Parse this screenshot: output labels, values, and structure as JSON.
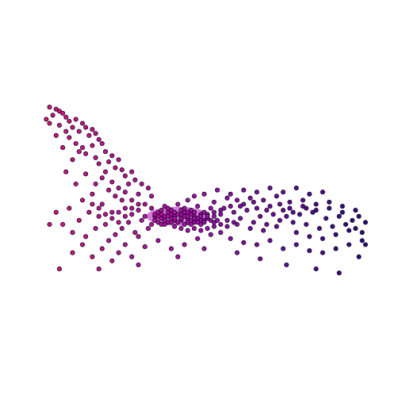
{
  "chart_data": {
    "type": "scatter",
    "title": "",
    "xlabel": "",
    "ylabel": "",
    "xlim": [
      0,
      100
    ],
    "ylim": [
      0,
      100
    ],
    "axes_visible": false,
    "grid": false,
    "legend": "none",
    "color_gradient": {
      "start": "#e0107a",
      "mid": "#a60db8",
      "end": "#1c0a86"
    },
    "series": [
      {
        "points": [
          [
            3,
            98
          ],
          [
            5,
            97
          ],
          [
            6,
            96
          ],
          [
            4,
            94
          ],
          [
            2,
            92
          ],
          [
            7,
            95
          ],
          [
            8,
            93
          ],
          [
            3,
            90
          ],
          [
            9,
            91
          ],
          [
            6,
            89
          ],
          [
            11,
            92
          ],
          [
            10,
            88
          ],
          [
            13,
            90
          ],
          [
            8,
            86
          ],
          [
            12,
            86
          ],
          [
            14,
            88
          ],
          [
            16,
            87
          ],
          [
            9,
            83
          ],
          [
            15,
            84
          ],
          [
            17,
            85
          ],
          [
            11,
            80
          ],
          [
            18,
            82
          ],
          [
            13,
            78
          ],
          [
            19,
            80
          ],
          [
            16,
            79
          ],
          [
            14,
            75
          ],
          [
            20,
            76
          ],
          [
            17,
            73
          ],
          [
            22,
            74
          ],
          [
            18,
            70
          ],
          [
            21,
            71
          ],
          [
            24,
            72
          ],
          [
            12,
            76
          ],
          [
            23,
            68
          ],
          [
            20,
            66
          ],
          [
            25,
            67
          ],
          [
            26,
            64
          ],
          [
            19,
            63
          ],
          [
            28,
            66
          ],
          [
            22,
            61
          ],
          [
            27,
            60
          ],
          [
            29,
            62
          ],
          [
            24,
            58
          ],
          [
            31,
            60
          ],
          [
            26,
            56
          ],
          [
            30,
            55
          ],
          [
            33,
            58
          ],
          [
            28,
            52
          ],
          [
            34,
            54
          ],
          [
            32,
            50
          ],
          [
            5,
            84
          ],
          [
            7,
            78
          ],
          [
            10,
            72
          ],
          [
            8,
            66
          ],
          [
            14,
            65
          ],
          [
            17,
            60
          ],
          [
            21,
            57
          ],
          [
            23,
            54
          ],
          [
            25,
            52
          ],
          [
            16,
            55
          ],
          [
            11,
            60
          ],
          [
            13,
            52
          ],
          [
            19,
            50
          ],
          [
            9,
            48
          ],
          [
            15,
            46
          ],
          [
            18,
            44
          ],
          [
            12,
            42
          ],
          [
            20,
            40
          ],
          [
            22,
            43
          ],
          [
            24,
            46
          ],
          [
            26,
            48
          ],
          [
            28,
            45
          ],
          [
            30,
            47
          ],
          [
            27,
            41
          ],
          [
            25,
            38
          ],
          [
            29,
            36
          ],
          [
            31,
            42
          ],
          [
            23,
            35
          ],
          [
            21,
            32
          ],
          [
            26,
            30
          ],
          [
            14,
            34
          ],
          [
            17,
            38
          ],
          [
            19,
            28
          ],
          [
            24,
            26
          ],
          [
            7,
            40
          ],
          [
            5,
            46
          ],
          [
            10,
            36
          ],
          [
            13,
            30
          ],
          [
            30,
            34
          ],
          [
            33,
            38
          ],
          [
            35,
            44
          ],
          [
            37,
            40
          ],
          [
            39,
            46
          ],
          [
            41,
            42
          ],
          [
            43,
            45
          ],
          [
            45,
            41
          ],
          [
            47,
            44
          ],
          [
            49,
            40
          ],
          [
            51,
            43
          ],
          [
            53,
            39
          ],
          [
            34,
            48
          ],
          [
            36,
            46
          ],
          [
            38,
            49
          ],
          [
            40,
            47
          ],
          [
            42,
            50
          ],
          [
            44,
            48
          ],
          [
            46,
            47
          ],
          [
            48,
            49
          ],
          [
            50,
            46
          ],
          [
            52,
            48
          ],
          [
            35,
            42
          ],
          [
            37,
            43
          ],
          [
            39,
            41
          ],
          [
            41,
            44
          ],
          [
            43,
            42
          ],
          [
            45,
            43
          ],
          [
            47,
            41
          ],
          [
            49,
            42
          ],
          [
            38,
            44
          ],
          [
            40,
            43
          ],
          [
            42,
            45
          ],
          [
            44,
            44
          ],
          [
            46,
            42
          ],
          [
            48,
            43
          ],
          [
            50,
            42
          ],
          [
            36,
            44
          ],
          [
            38,
            42
          ],
          [
            40,
            45
          ],
          [
            44,
            46
          ],
          [
            46,
            45
          ],
          [
            55,
            45
          ],
          [
            57,
            42
          ],
          [
            59,
            46
          ],
          [
            61,
            43
          ],
          [
            63,
            47
          ],
          [
            65,
            41
          ],
          [
            67,
            44
          ],
          [
            69,
            40
          ],
          [
            71,
            45
          ],
          [
            73,
            42
          ],
          [
            56,
            48
          ],
          [
            58,
            49
          ],
          [
            60,
            40
          ],
          [
            62,
            50
          ],
          [
            64,
            38
          ],
          [
            66,
            48
          ],
          [
            68,
            37
          ],
          [
            70,
            49
          ],
          [
            72,
            39
          ],
          [
            74,
            47
          ],
          [
            75,
            44
          ],
          [
            77,
            41
          ],
          [
            79,
            45
          ],
          [
            81,
            40
          ],
          [
            83,
            46
          ],
          [
            85,
            38
          ],
          [
            87,
            43
          ],
          [
            89,
            39
          ],
          [
            91,
            44
          ],
          [
            93,
            40
          ],
          [
            76,
            48
          ],
          [
            78,
            36
          ],
          [
            80,
            49
          ],
          [
            82,
            34
          ],
          [
            84,
            47
          ],
          [
            86,
            33
          ],
          [
            88,
            48
          ],
          [
            90,
            35
          ],
          [
            92,
            46
          ],
          [
            94,
            37
          ],
          [
            95,
            42
          ],
          [
            96,
            38
          ],
          [
            97,
            44
          ],
          [
            98,
            36
          ],
          [
            99,
            41
          ],
          [
            96,
            47
          ],
          [
            98,
            32
          ],
          [
            94,
            30
          ],
          [
            90,
            28
          ],
          [
            86,
            26
          ],
          [
            55,
            36
          ],
          [
            58,
            33
          ],
          [
            62,
            31
          ],
          [
            66,
            30
          ],
          [
            70,
            32
          ],
          [
            74,
            28
          ],
          [
            78,
            30
          ],
          [
            82,
            27
          ],
          [
            60,
            52
          ],
          [
            64,
            53
          ],
          [
            68,
            52
          ],
          [
            72,
            54
          ],
          [
            76,
            51
          ],
          [
            80,
            52
          ],
          [
            84,
            50
          ],
          [
            88,
            51
          ],
          [
            92,
            49
          ],
          [
            52,
            35
          ],
          [
            48,
            33
          ],
          [
            44,
            30
          ],
          [
            40,
            28
          ],
          [
            36,
            32
          ],
          [
            32,
            29
          ],
          [
            28,
            24
          ],
          [
            22,
            22
          ],
          [
            16,
            24
          ],
          [
            10,
            26
          ],
          [
            3,
            40
          ],
          [
            6,
            18
          ],
          [
            18,
            18
          ],
          [
            30,
            20
          ],
          [
            42,
            24
          ],
          [
            50,
            28
          ],
          [
            60,
            26
          ],
          [
            67,
            23
          ],
          [
            75,
            20
          ],
          [
            84,
            18
          ],
          [
            91,
            16
          ],
          [
            97,
            24
          ],
          [
            99,
            30
          ],
          [
            34,
            40
          ],
          [
            32,
            44
          ],
          [
            30,
            50
          ],
          [
            28,
            48
          ],
          [
            26,
            44
          ],
          [
            24,
            41
          ],
          [
            22,
            46
          ],
          [
            20,
            45
          ],
          [
            18,
            48
          ],
          [
            16,
            50
          ],
          [
            50,
            55
          ],
          [
            54,
            57
          ],
          [
            58,
            55
          ],
          [
            62,
            57
          ],
          [
            66,
            56
          ],
          [
            70,
            58
          ],
          [
            74,
            56
          ],
          [
            78,
            58
          ],
          [
            82,
            55
          ],
          [
            86,
            56
          ],
          [
            45,
            52
          ],
          [
            47,
            54
          ],
          [
            53,
            51
          ],
          [
            57,
            53
          ],
          [
            61,
            49
          ],
          [
            65,
            51
          ],
          [
            69,
            47
          ],
          [
            73,
            50
          ],
          [
            77,
            46
          ],
          [
            81,
            48
          ],
          [
            41,
            39
          ],
          [
            43,
            38
          ],
          [
            45,
            37
          ],
          [
            47,
            38
          ],
          [
            49,
            37
          ],
          [
            51,
            38
          ],
          [
            53,
            41
          ],
          [
            55,
            40
          ],
          [
            57,
            39
          ],
          [
            59,
            41
          ],
          [
            37,
            47
          ],
          [
            39,
            48
          ],
          [
            41,
            46
          ],
          [
            43,
            47
          ],
          [
            45,
            46
          ],
          [
            47,
            46
          ],
          [
            49,
            45
          ],
          [
            51,
            45
          ],
          [
            53,
            46
          ],
          [
            55,
            47
          ],
          [
            35,
            45
          ],
          [
            37,
            45
          ],
          [
            39,
            44
          ],
          [
            41,
            43
          ],
          [
            43,
            43
          ],
          [
            45,
            44
          ],
          [
            47,
            43
          ],
          [
            49,
            44
          ],
          [
            51,
            44
          ],
          [
            53,
            44
          ],
          [
            36,
            41
          ],
          [
            38,
            40
          ],
          [
            40,
            41
          ],
          [
            42,
            41
          ],
          [
            44,
            40
          ],
          [
            46,
            40
          ],
          [
            48,
            41
          ],
          [
            50,
            41
          ],
          [
            52,
            42
          ],
          [
            54,
            42
          ]
        ]
      }
    ]
  }
}
